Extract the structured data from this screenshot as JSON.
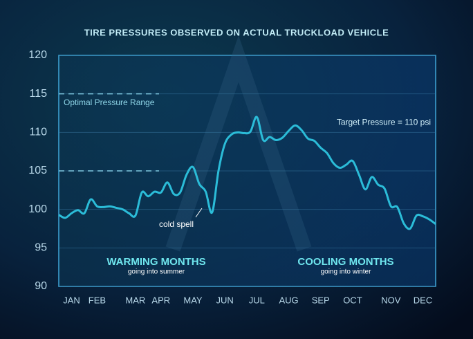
{
  "chart_data": {
    "type": "line",
    "title": "TIRE PRESSURES OBSERVED ON ACTUAL TRUCKLOAD VEHICLE",
    "categories": [
      null,
      null,
      "JAN",
      null,
      null,
      null,
      "FEB",
      null,
      null,
      null,
      null,
      null,
      "MAR",
      null,
      null,
      null,
      "APR",
      null,
      null,
      null,
      null,
      "MAY",
      null,
      null,
      null,
      null,
      "JUN",
      null,
      null,
      null,
      null,
      "JUL",
      null,
      null,
      null,
      null,
      "AUG",
      null,
      null,
      null,
      null,
      "SEP",
      null,
      null,
      null,
      null,
      "OCT",
      null,
      null,
      null,
      null,
      null,
      "NOV",
      null,
      null,
      null,
      null,
      "DEC",
      null,
      null
    ],
    "series": [
      {
        "color": "#2bbcd8",
        "values": [
          99.3,
          98.9,
          99.5,
          99.9,
          99.5,
          101.3,
          100.4,
          100.3,
          100.4,
          100.2,
          100,
          99.5,
          99.2,
          102.2,
          101.7,
          102.3,
          102.2,
          103.5,
          102,
          102.2,
          104.5,
          105.5,
          103.3,
          102.3,
          99.6,
          105,
          108.5,
          109.7,
          110,
          109.9,
          110.1,
          112,
          109,
          109.4,
          109,
          109.3,
          110.2,
          110.9,
          110.3,
          109.2,
          108.9,
          108,
          107.3,
          106,
          105.4,
          105.8,
          106.3,
          104.5,
          102.6,
          104.2,
          103.2,
          102.7,
          100.4,
          100.3,
          98.2,
          97.5,
          99.2,
          99.1,
          98.7,
          98.1
        ]
      }
    ],
    "ylim": [
      90,
      120
    ],
    "yticks": [
      90,
      95,
      100,
      105,
      110,
      115,
      120
    ],
    "grid": true,
    "target": {
      "value": 110,
      "label": "Target Pressure = 110 psi",
      "color": "#e6fbff"
    },
    "optimal_range": {
      "values": [
        105,
        115
      ],
      "label": "Optimal Pressure Range"
    },
    "annotations": [
      "cold spell"
    ],
    "seasons": [
      {
        "title": "WARMING MONTHS",
        "subtitle": "going into summer"
      },
      {
        "title": "COOLING MONTHS",
        "subtitle": "going into winter"
      }
    ]
  }
}
